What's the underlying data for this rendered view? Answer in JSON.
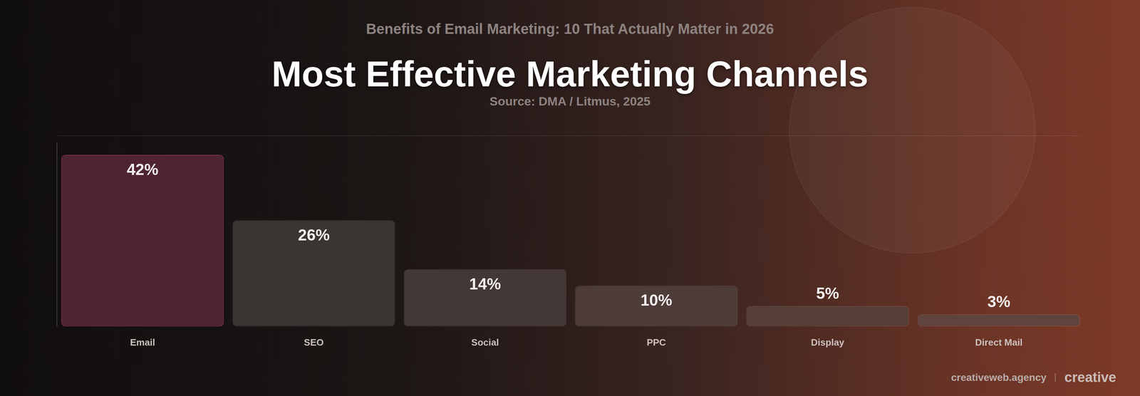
{
  "chart_data": {
    "type": "bar",
    "header": "Benefits of Email Marketing: 10 That Actually Matter in 2026",
    "title": "Most Effective Marketing Channels",
    "subtitle": "Source: DMA / Litmus, 2025",
    "categories": [
      "Email",
      "SEO",
      "Social",
      "PPC",
      "Display",
      "Direct Mail"
    ],
    "values": [
      42,
      26,
      14,
      10,
      5,
      3
    ],
    "value_labels": [
      "42%",
      "26%",
      "14%",
      "10%",
      "5%",
      "3%"
    ],
    "colors": [
      "#4e2433",
      "#3a3432",
      "#433836",
      "#4d3c38",
      "#573f39",
      "#5f443d"
    ],
    "ylim": [
      0,
      45
    ],
    "grid": false,
    "data_labels": true,
    "tick_labels": "x"
  },
  "footer": {
    "site": "creativeweb.agency",
    "brand": "creative"
  }
}
